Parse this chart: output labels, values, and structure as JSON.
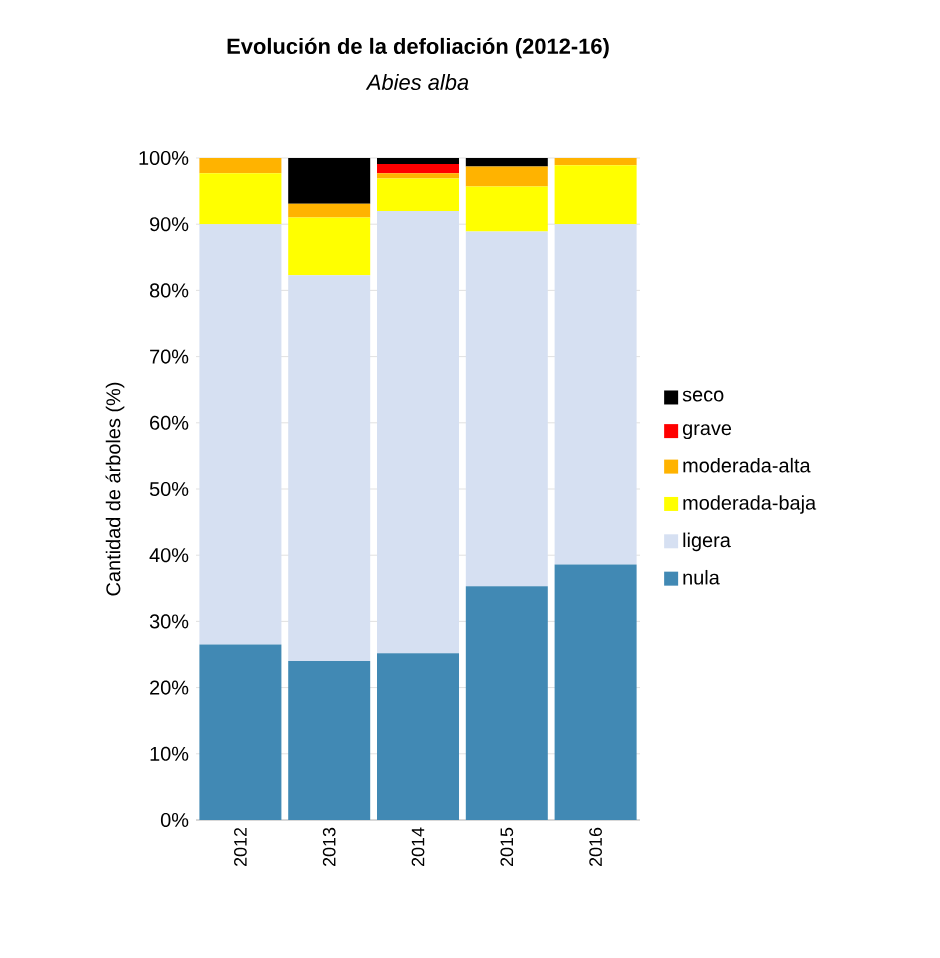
{
  "chart_data": {
    "type": "bar",
    "title": "Evolución de la defoliación (2012-16)",
    "subtitle": "*Abies alba*",
    "ylabel": "Cantidad de árboles (%)",
    "categories": [
      "2012",
      "2013",
      "2014",
      "2015",
      "2016"
    ],
    "stacked": true,
    "series": [
      {
        "name": "nula",
        "color": "#4189b4",
        "values": [
          26.5,
          24,
          25.2,
          35.3,
          38.6
        ]
      },
      {
        "name": "ligera",
        "color": "#d6e0f2",
        "values": [
          63.5,
          58.3,
          66.8,
          53.6,
          51.4
        ]
      },
      {
        "name": "moderada-baja",
        "color": "#ffff00",
        "values": [
          7.7,
          8.7,
          4.9,
          6.8,
          8.9
        ]
      },
      {
        "name": "moderada-alta",
        "color": "#ffb300",
        "values": [
          2.3,
          2.1,
          0.8,
          3.0,
          1.1
        ]
      },
      {
        "name": "grave",
        "color": "#ff0000",
        "values": [
          null,
          null,
          1.4,
          null,
          null
        ]
      },
      {
        "name": "seco",
        "color": "#000000",
        "values": [
          null,
          6.9,
          0.9,
          1.3,
          null
        ]
      }
    ],
    "ylim": [
      0,
      100
    ],
    "yticks": [
      {
        "value": 0,
        "label": "0%"
      },
      {
        "value": 10,
        "label": "10%"
      },
      {
        "value": 20,
        "label": "20%"
      },
      {
        "value": 30,
        "label": "30%"
      },
      {
        "value": 40,
        "label": "40%"
      },
      {
        "value": 50,
        "label": "50%"
      },
      {
        "value": 60,
        "label": "60%"
      },
      {
        "value": 70,
        "label": "70%"
      },
      {
        "value": 80,
        "label": "80%"
      },
      {
        "value": 90,
        "label": "90%"
      },
      {
        "value": 100,
        "label": "100%"
      }
    ],
    "grid": "y",
    "legend": "right"
  }
}
